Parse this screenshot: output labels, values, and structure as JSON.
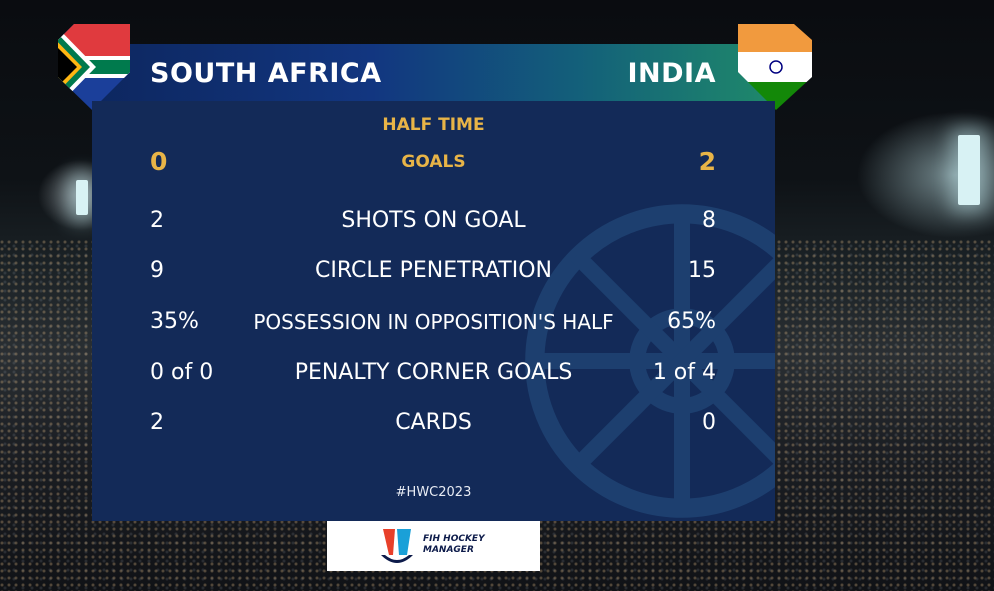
{
  "teams": {
    "home": "SOUTH AFRICA",
    "away": "INDIA"
  },
  "period": "HALF TIME",
  "goals": {
    "label": "GOALS",
    "home": "0",
    "away": "2"
  },
  "stats": [
    {
      "label": "SHOTS ON GOAL",
      "home": "2",
      "away": "8"
    },
    {
      "label": "CIRCLE PENETRATION",
      "home": "9",
      "away": "15"
    },
    {
      "label": "POSSESSION IN OPPOSITION'S HALF",
      "home": "35%",
      "away": "65%"
    },
    {
      "label": "PENALTY CORNER GOALS",
      "home": "0 of 0",
      "away": "1 of 4"
    },
    {
      "label": "CARDS",
      "home": "2",
      "away": "0"
    }
  ],
  "hashtag": "#HWC2023",
  "sponsor": {
    "line1": "FIH HOCKEY",
    "line2": "MANAGER"
  },
  "colors": {
    "panel": "#132a58",
    "gold": "#e8b447",
    "text": "#ffffff"
  },
  "icons": {
    "home_flag": "south-africa-flag-icon",
    "away_flag": "india-flag-icon",
    "sponsor": "fih-hockey-manager-logo"
  }
}
